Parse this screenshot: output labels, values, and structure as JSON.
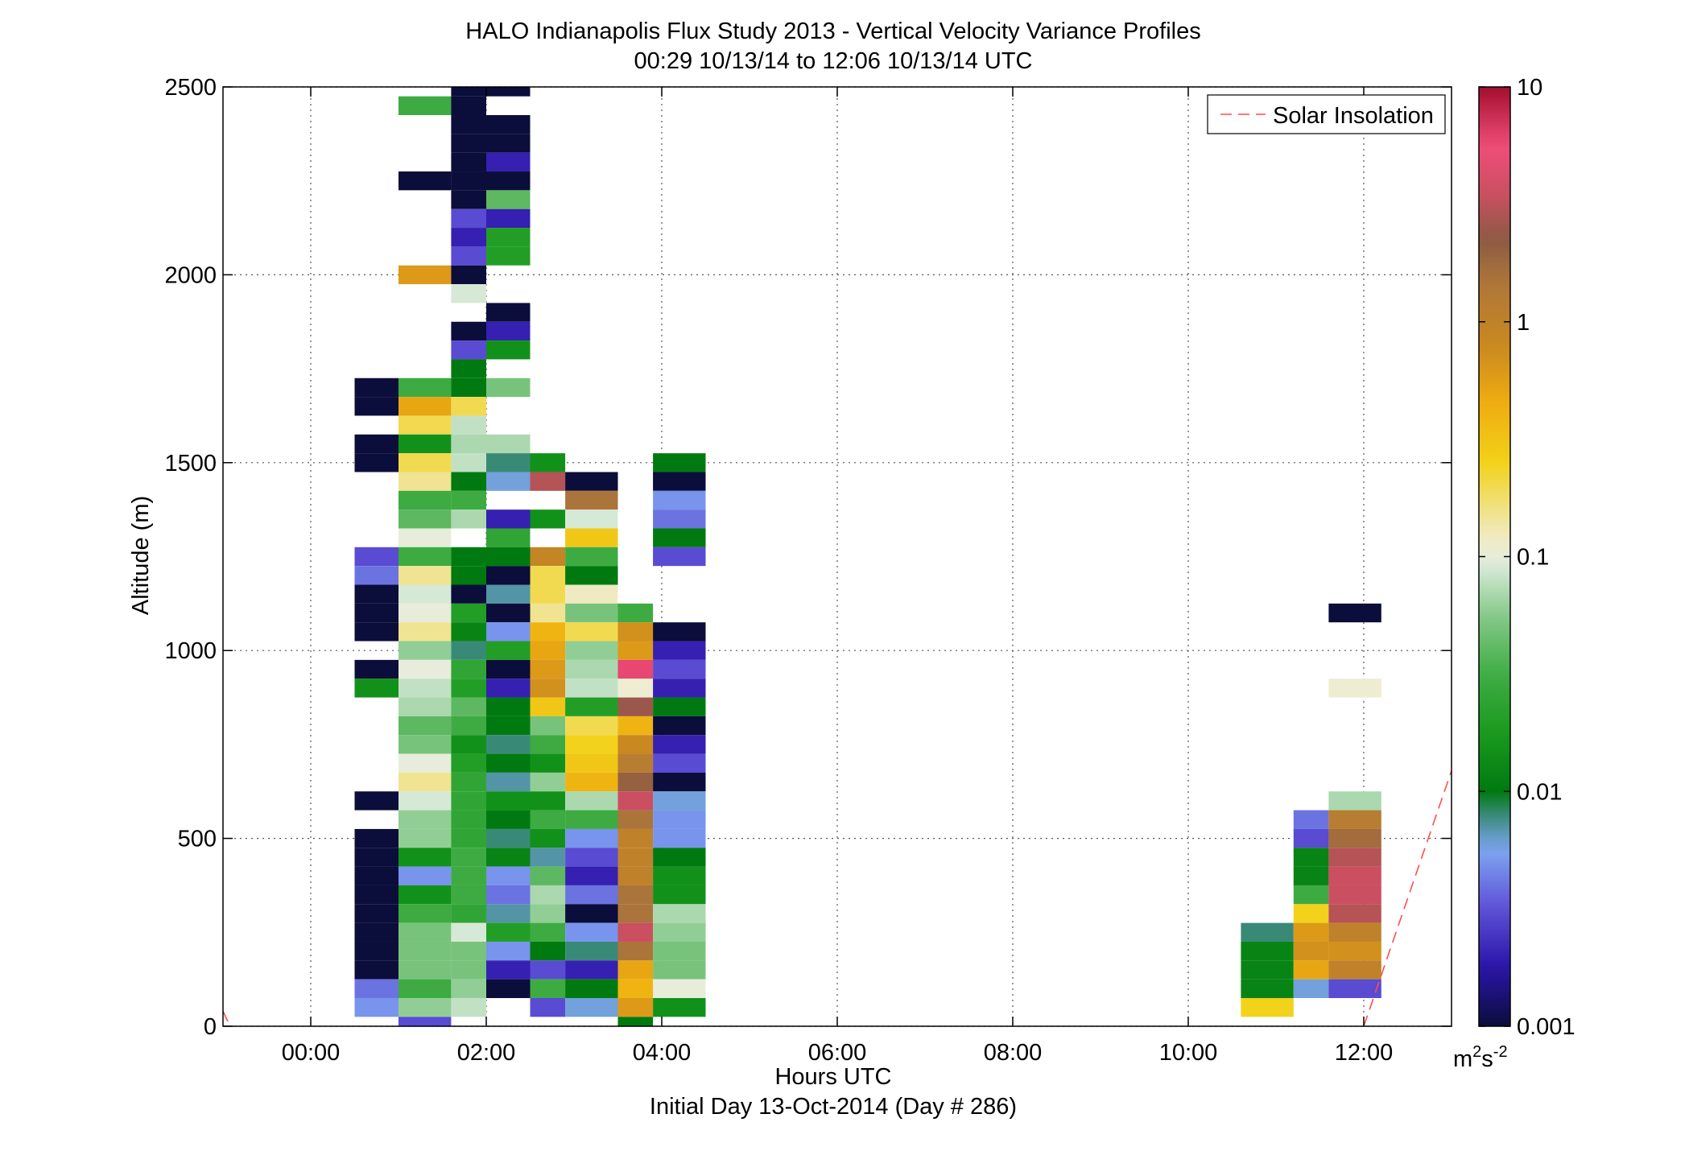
{
  "chart_data": {
    "type": "heatmap",
    "title": "HALO Indianapolis Flux Study 2013 - Vertical Velocity Variance Profiles",
    "subtitle": "00:29 10/13/14 to 12:06 10/13/14  UTC",
    "xlabel": "Hours UTC",
    "xlabel2": "Initial Day 13-Oct-2014 (Day # 286)",
    "ylabel": "Altitude (m)",
    "xlim": [
      -1,
      13
    ],
    "ylim": [
      0,
      2500
    ],
    "x_ticks": [
      0,
      2,
      4,
      6,
      8,
      10,
      12
    ],
    "x_tick_labels": [
      "00:00",
      "02:00",
      "04:00",
      "06:00",
      "08:00",
      "10:00",
      "12:00"
    ],
    "y_ticks": [
      0,
      500,
      1000,
      1500,
      2000,
      2500
    ],
    "y_tick_labels": [
      "0",
      "500",
      "1000",
      "1500",
      "2000",
      "2500"
    ],
    "grid": true,
    "legend": {
      "position": "top-right",
      "entries": [
        {
          "label": "Solar Insolation",
          "color": "#ff4d4d",
          "style": "dashed"
        }
      ]
    },
    "colorbar": {
      "scale": "log",
      "min": 0.001,
      "max": 10,
      "ticks": [
        0.001,
        0.01,
        0.1,
        1,
        10
      ],
      "tick_labels": [
        "0.001",
        "0.01",
        "0.1",
        "1",
        "10"
      ],
      "unit_base": "m",
      "unit_exp1": "2",
      "unit_mid": "s",
      "unit_exp2": "-2"
    },
    "cell_height_m": 50,
    "solar_insolation": [
      [
        -1,
        40
      ],
      [
        -0.92,
        0
      ],
      [
        12.0,
        0
      ],
      [
        13.0,
        680
      ]
    ],
    "columns": [
      {
        "x": [
          0.5,
          1.0
        ],
        "cells": [
          [
            1250,
            0.003
          ],
          [
            1200,
            0.004
          ],
          [
            1150,
            0.001
          ],
          [
            1100,
            0.001
          ],
          [
            1050,
            0.001
          ],
          [
            1700,
            0.001
          ],
          [
            1650,
            0.001
          ],
          [
            1550,
            0.001
          ],
          [
            1500,
            0.001
          ],
          [
            950,
            0.001
          ],
          [
            900,
            0.015
          ],
          [
            600,
            0.001
          ],
          [
            500,
            0.001
          ],
          [
            450,
            0.001
          ],
          [
            400,
            0.001
          ],
          [
            350,
            0.001
          ],
          [
            300,
            0.001
          ],
          [
            250,
            0.001
          ],
          [
            200,
            0.001
          ],
          [
            150,
            0.001
          ],
          [
            100,
            0.004
          ],
          [
            50,
            0.005
          ]
        ]
      },
      {
        "x": [
          1.0,
          1.6
        ],
        "cells": [
          [
            2450,
            0.03
          ],
          [
            2250,
            0.001
          ],
          [
            2000,
            0.6
          ],
          [
            1700,
            0.03
          ],
          [
            1650,
            0.5
          ],
          [
            1600,
            0.2
          ],
          [
            1550,
            0.015
          ],
          [
            1500,
            0.2
          ],
          [
            1450,
            0.15
          ],
          [
            1400,
            0.03
          ],
          [
            1350,
            0.04
          ],
          [
            1300,
            0.1
          ],
          [
            1250,
            0.03
          ],
          [
            1200,
            0.15
          ],
          [
            1150,
            0.09
          ],
          [
            1100,
            0.1
          ],
          [
            1050,
            0.15
          ],
          [
            1000,
            0.06
          ],
          [
            950,
            0.1
          ],
          [
            900,
            0.08
          ],
          [
            850,
            0.07
          ],
          [
            800,
            0.04
          ],
          [
            750,
            0.05
          ],
          [
            700,
            0.1
          ],
          [
            650,
            0.15
          ],
          [
            600,
            0.09
          ],
          [
            550,
            0.06
          ],
          [
            500,
            0.06
          ],
          [
            450,
            0.015
          ],
          [
            400,
            0.005
          ],
          [
            350,
            0.015
          ],
          [
            300,
            0.03
          ],
          [
            250,
            0.05
          ],
          [
            200,
            0.05
          ],
          [
            150,
            0.05
          ],
          [
            100,
            0.03
          ],
          [
            50,
            0.06
          ],
          [
            0,
            0.003
          ]
        ]
      },
      {
        "x": [
          1.6,
          2.0
        ],
        "cells": [
          [
            2500,
            0.001
          ],
          [
            2450,
            0.001
          ],
          [
            2400,
            0.001
          ],
          [
            2350,
            0.001
          ],
          [
            2300,
            0.001
          ],
          [
            2250,
            0.001
          ],
          [
            2200,
            0.001
          ],
          [
            2150,
            0.003
          ],
          [
            2100,
            0.002
          ],
          [
            2050,
            0.003
          ],
          [
            2000,
            0.001
          ],
          [
            1950,
            0.09
          ],
          [
            1850,
            0.001
          ],
          [
            1800,
            0.003
          ],
          [
            1750,
            0.01
          ],
          [
            1700,
            0.01
          ],
          [
            1650,
            0.2
          ],
          [
            1600,
            0.08
          ],
          [
            1550,
            0.07
          ],
          [
            1500,
            0.08
          ],
          [
            1450,
            0.01
          ],
          [
            1400,
            0.03
          ],
          [
            1350,
            0.07
          ],
          [
            1250,
            0.01
          ],
          [
            1200,
            0.01
          ],
          [
            1150,
            0.001
          ],
          [
            1100,
            0.02
          ],
          [
            1050,
            0.012
          ],
          [
            1000,
            0.008
          ],
          [
            950,
            0.025
          ],
          [
            900,
            0.02
          ],
          [
            850,
            0.04
          ],
          [
            800,
            0.03
          ],
          [
            750,
            0.015
          ],
          [
            700,
            0.02
          ],
          [
            650,
            0.025
          ],
          [
            600,
            0.025
          ],
          [
            550,
            0.025
          ],
          [
            500,
            0.025
          ],
          [
            450,
            0.03
          ],
          [
            400,
            0.03
          ],
          [
            350,
            0.03
          ],
          [
            300,
            0.025
          ],
          [
            250,
            0.09
          ],
          [
            200,
            0.05
          ],
          [
            150,
            0.05
          ],
          [
            100,
            0.06
          ],
          [
            50,
            0.08
          ]
        ]
      },
      {
        "x": [
          2.0,
          2.5
        ],
        "cells": [
          [
            2500,
            0.001
          ],
          [
            2400,
            0.001
          ],
          [
            2350,
            0.001
          ],
          [
            2300,
            0.002
          ],
          [
            2250,
            0.001
          ],
          [
            2200,
            0.04
          ],
          [
            2150,
            0.002
          ],
          [
            2100,
            0.02
          ],
          [
            2050,
            0.02
          ],
          [
            1900,
            0.001
          ],
          [
            1850,
            0.002
          ],
          [
            1800,
            0.015
          ],
          [
            1700,
            0.05
          ],
          [
            1550,
            0.07
          ],
          [
            1500,
            0.008
          ],
          [
            1450,
            0.006
          ],
          [
            1350,
            0.002
          ],
          [
            1300,
            0.025
          ],
          [
            1250,
            0.01
          ],
          [
            1200,
            0.001
          ],
          [
            1150,
            0.007
          ],
          [
            1100,
            0.001
          ],
          [
            1050,
            0.005
          ],
          [
            1000,
            0.02
          ],
          [
            950,
            0.001
          ],
          [
            900,
            0.002
          ],
          [
            850,
            0.01
          ],
          [
            800,
            0.01
          ],
          [
            750,
            0.008
          ],
          [
            700,
            0.01
          ],
          [
            650,
            0.007
          ],
          [
            600,
            0.015
          ],
          [
            550,
            0.01
          ],
          [
            500,
            0.008
          ],
          [
            450,
            0.012
          ],
          [
            400,
            0.005
          ],
          [
            350,
            0.004
          ],
          [
            300,
            0.007
          ],
          [
            250,
            0.02
          ],
          [
            200,
            0.005
          ],
          [
            150,
            0.002
          ],
          [
            100,
            0.001
          ]
        ]
      },
      {
        "x": [
          2.5,
          2.9
        ],
        "cells": [
          [
            1500,
            0.015
          ],
          [
            1450,
            3.0
          ],
          [
            1350,
            0.015
          ],
          [
            1250,
            0.9
          ],
          [
            1200,
            0.2
          ],
          [
            1150,
            0.2
          ],
          [
            1100,
            0.15
          ],
          [
            1050,
            0.4
          ],
          [
            1000,
            0.5
          ],
          [
            950,
            0.6
          ],
          [
            900,
            0.7
          ],
          [
            850,
            0.3
          ],
          [
            800,
            0.05
          ],
          [
            750,
            0.03
          ],
          [
            700,
            0.015
          ],
          [
            650,
            0.06
          ],
          [
            600,
            0.015
          ],
          [
            550,
            0.03
          ],
          [
            500,
            0.015
          ],
          [
            450,
            0.007
          ],
          [
            400,
            0.04
          ],
          [
            350,
            0.07
          ],
          [
            300,
            0.06
          ],
          [
            250,
            0.03
          ],
          [
            200,
            0.01
          ],
          [
            150,
            0.003
          ],
          [
            100,
            0.03
          ],
          [
            50,
            0.003
          ]
        ]
      },
      {
        "x": [
          2.9,
          3.5
        ],
        "cells": [
          [
            1450,
            0.001
          ],
          [
            1400,
            1.5
          ],
          [
            1350,
            0.09
          ],
          [
            1300,
            0.3
          ],
          [
            1250,
            0.03
          ],
          [
            1200,
            0.01
          ],
          [
            1150,
            0.12
          ],
          [
            1100,
            0.05
          ],
          [
            1050,
            0.2
          ],
          [
            1000,
            0.06
          ],
          [
            950,
            0.07
          ],
          [
            900,
            0.08
          ],
          [
            850,
            0.02
          ],
          [
            800,
            0.2
          ],
          [
            750,
            0.25
          ],
          [
            700,
            0.3
          ],
          [
            650,
            0.4
          ],
          [
            600,
            0.07
          ],
          [
            550,
            0.03
          ],
          [
            500,
            0.005
          ],
          [
            450,
            0.003
          ],
          [
            400,
            0.002
          ],
          [
            350,
            0.004
          ],
          [
            300,
            0.001
          ],
          [
            250,
            0.005
          ],
          [
            200,
            0.008
          ],
          [
            150,
            0.002
          ],
          [
            100,
            0.01
          ],
          [
            50,
            0.006
          ]
        ]
      },
      {
        "x": [
          3.5,
          3.9
        ],
        "cells": [
          [
            1100,
            0.03
          ],
          [
            1050,
            0.7
          ],
          [
            1000,
            0.6
          ],
          [
            950,
            6.0
          ],
          [
            900,
            0.11
          ],
          [
            850,
            2.5
          ],
          [
            800,
            0.4
          ],
          [
            750,
            0.8
          ],
          [
            700,
            1.2
          ],
          [
            650,
            2.0
          ],
          [
            600,
            3.5
          ],
          [
            550,
            1.5
          ],
          [
            500,
            1.0
          ],
          [
            450,
            1.0
          ],
          [
            400,
            1.0
          ],
          [
            350,
            1.5
          ],
          [
            300,
            1.5
          ],
          [
            250,
            3.5
          ],
          [
            200,
            1.5
          ],
          [
            150,
            0.5
          ],
          [
            100,
            0.4
          ],
          [
            50,
            0.6
          ],
          [
            0,
            0.01
          ]
        ]
      },
      {
        "x": [
          3.9,
          4.5
        ],
        "cells": [
          [
            1500,
            0.01
          ],
          [
            1450,
            0.001
          ],
          [
            1400,
            0.005
          ],
          [
            1350,
            0.004
          ],
          [
            1300,
            0.01
          ],
          [
            1250,
            0.003
          ],
          [
            1050,
            0.001
          ],
          [
            1000,
            0.002
          ],
          [
            950,
            0.003
          ],
          [
            900,
            0.002
          ],
          [
            850,
            0.01
          ],
          [
            800,
            0.001
          ],
          [
            750,
            0.002
          ],
          [
            700,
            0.003
          ],
          [
            650,
            0.001
          ],
          [
            600,
            0.006
          ],
          [
            550,
            0.005
          ],
          [
            500,
            0.005
          ],
          [
            450,
            0.01
          ],
          [
            400,
            0.015
          ],
          [
            350,
            0.015
          ],
          [
            300,
            0.07
          ],
          [
            250,
            0.06
          ],
          [
            200,
            0.05
          ],
          [
            150,
            0.05
          ],
          [
            100,
            0.1
          ],
          [
            50,
            0.015
          ]
        ]
      },
      {
        "x": [
          10.6,
          11.2
        ],
        "cells": [
          [
            250,
            0.008
          ],
          [
            200,
            0.012
          ],
          [
            150,
            0.012
          ],
          [
            100,
            0.012
          ],
          [
            50,
            0.25
          ]
        ]
      },
      {
        "x": [
          11.2,
          11.6
        ],
        "cells": [
          [
            550,
            0.004
          ],
          [
            500,
            0.003
          ],
          [
            450,
            0.012
          ],
          [
            400,
            0.012
          ],
          [
            350,
            0.03
          ],
          [
            300,
            0.25
          ],
          [
            250,
            0.6
          ],
          [
            200,
            0.7
          ],
          [
            150,
            0.5
          ],
          [
            100,
            0.006
          ]
        ]
      },
      {
        "x": [
          11.6,
          12.2
        ],
        "cells": [
          [
            1100,
            0.001
          ],
          [
            900,
            0.11
          ],
          [
            600,
            0.07
          ],
          [
            550,
            1.2
          ],
          [
            500,
            1.7
          ],
          [
            450,
            3.0
          ],
          [
            400,
            3.5
          ],
          [
            350,
            3.5
          ],
          [
            300,
            3.0
          ],
          [
            250,
            1.0
          ],
          [
            200,
            0.7
          ],
          [
            150,
            1.0
          ],
          [
            100,
            0.003
          ]
        ]
      }
    ]
  }
}
